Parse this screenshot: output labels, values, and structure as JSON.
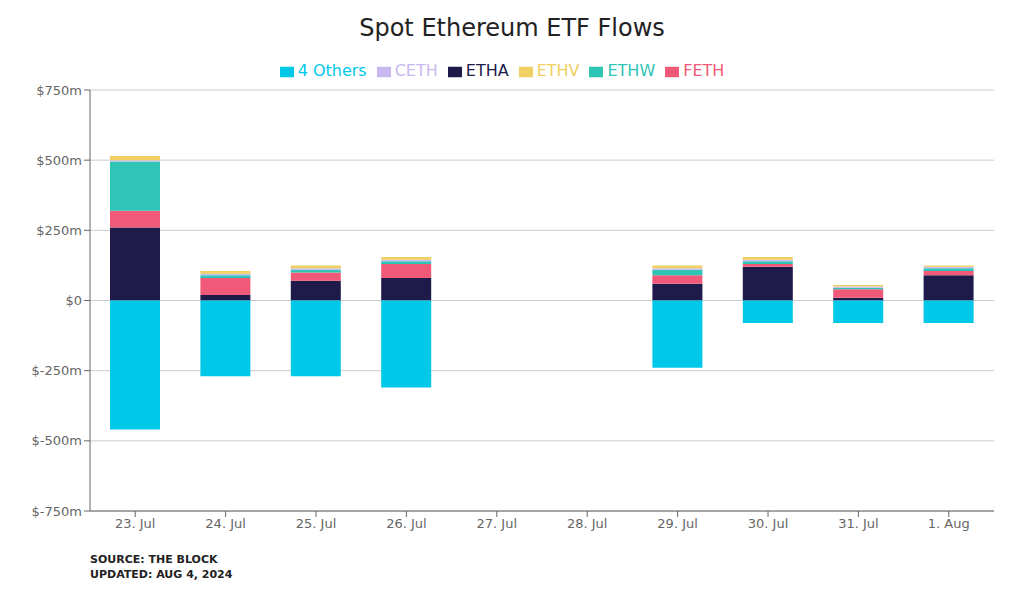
{
  "chart_data": {
    "type": "bar",
    "title": "Spot Ethereum ETF Flows",
    "categories": [
      "23. Jul",
      "24. Jul",
      "25. Jul",
      "26. Jul",
      "27. Jul",
      "28. Jul",
      "29. Jul",
      "30. Jul",
      "31. Jul",
      "1. Aug"
    ],
    "series": [
      {
        "name": "ETHA",
        "color": "#1e1b4b",
        "values": [
          260,
          20,
          70,
          80,
          0,
          0,
          60,
          120,
          10,
          90
        ]
      },
      {
        "name": "FETH",
        "color": "#f05a78",
        "values": [
          60,
          60,
          30,
          50,
          0,
          0,
          30,
          10,
          30,
          15
        ]
      },
      {
        "name": "ETHW",
        "color": "#2ec4b6",
        "values": [
          175,
          10,
          10,
          10,
          0,
          0,
          20,
          10,
          5,
          10
        ]
      },
      {
        "name": "CETH",
        "color": "#c9b8f0",
        "values": [
          5,
          5,
          5,
          5,
          0,
          0,
          5,
          5,
          5,
          5
        ]
      },
      {
        "name": "ETHV",
        "color": "#f0d060",
        "values": [
          15,
          10,
          10,
          10,
          0,
          0,
          10,
          10,
          5,
          5
        ]
      },
      {
        "name": "4 Others",
        "color": "#00c8e8",
        "values": [
          -460,
          -270,
          -270,
          -310,
          0,
          0,
          -240,
          -80,
          -80,
          -80
        ]
      }
    ],
    "stacked": true,
    "ylim": [
      -750,
      750
    ],
    "yticks": [
      {
        "value": -750,
        "label": "$-750m"
      },
      {
        "value": -500,
        "label": "$-500m"
      },
      {
        "value": -250,
        "label": "$-250m"
      },
      {
        "value": 0,
        "label": "$0"
      },
      {
        "value": 250,
        "label": "$250m"
      },
      {
        "value": 500,
        "label": "$500m"
      },
      {
        "value": 750,
        "label": "$750m"
      }
    ],
    "grid": true,
    "legend": "top",
    "annotations": [
      "SOURCE: THE BLOCK\nUPDATED: AUG 4, 2024"
    ]
  }
}
